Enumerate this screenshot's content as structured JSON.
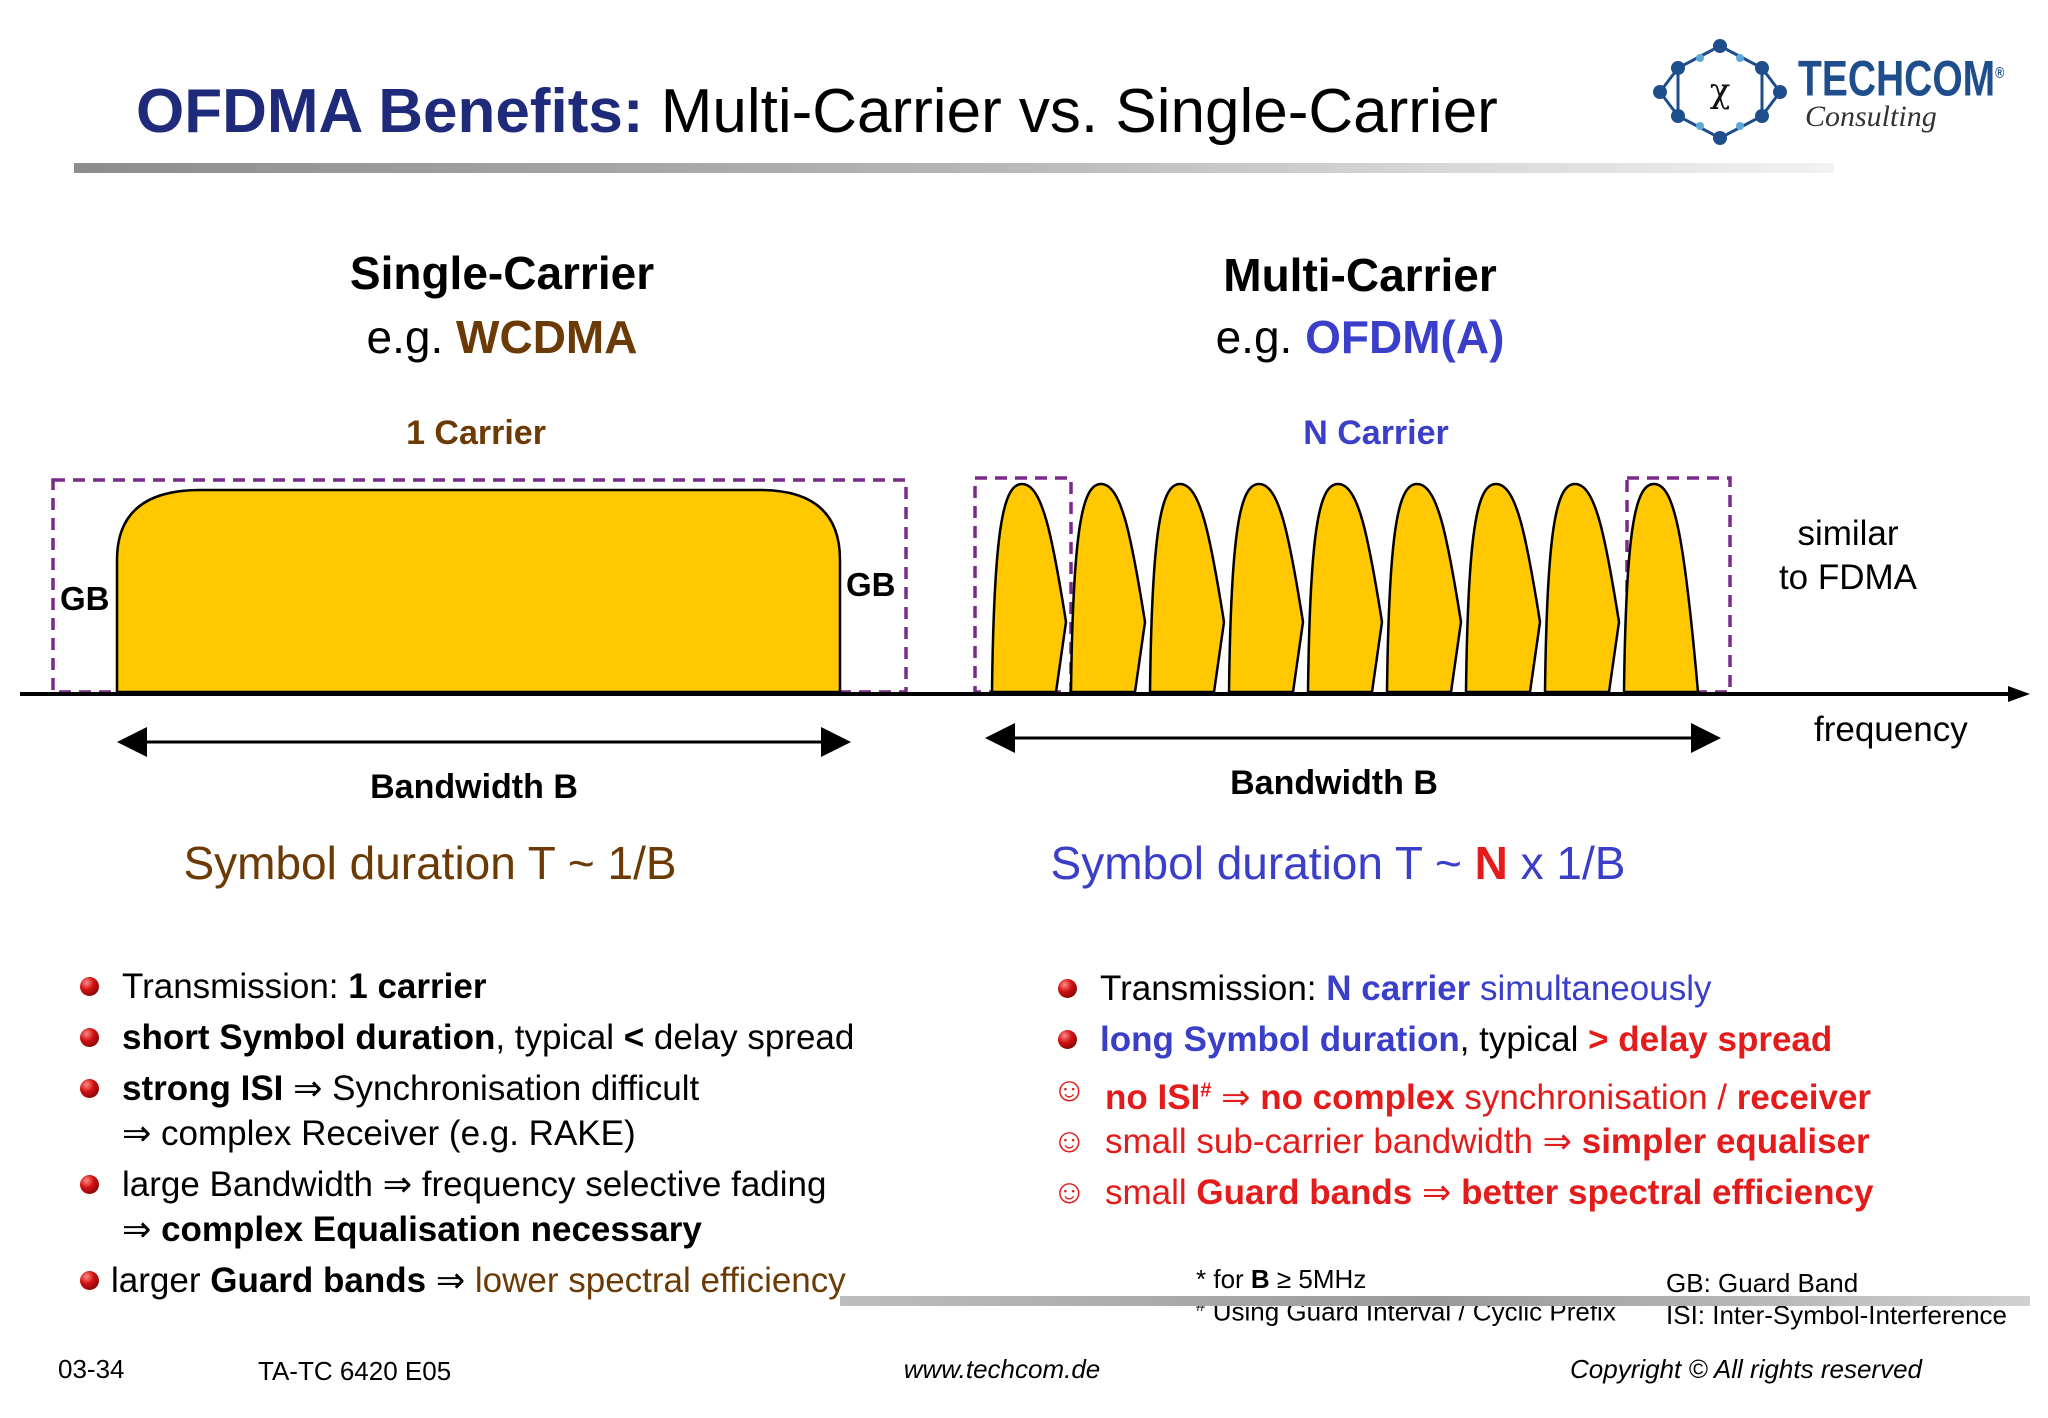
{
  "title": {
    "accent": "OFDMA Benefits:",
    "rest": " Multi-Carrier vs. Single-Carrier"
  },
  "logo": {
    "name": "TECHCOM",
    "tagline": "Consulting",
    "registered": "®"
  },
  "single": {
    "heading": "Single-Carrier",
    "eg_prefix": "e.g. ",
    "eg_name": "WCDMA",
    "carrier_label": "1 Carrier",
    "gb_left": "GB",
    "gb_right": "GB",
    "bandwidth": "Bandwidth B",
    "symbol_duration": "Symbol duration T ~ 1/B",
    "bullets": [
      {
        "a": "Transmission: ",
        "b": "1 carrier"
      },
      {
        "b": "short Symbol duration",
        "c": ", typical ",
        "d": "<",
        "e": " delay spread"
      },
      {
        "b": "strong ISI",
        "c": " ⇒ Synchronisation difficult"
      },
      {
        "c": "⇒ complex Receiver (e.g. RAKE)"
      },
      {
        "c": "large Bandwidth  ⇒  frequency selective fading"
      },
      {
        "c": "⇒ ",
        "b": "complex Equalisation necessary"
      },
      {
        "a": "larger ",
        "b": "Guard bands",
        "c": " ⇒ ",
        "d": "lower spectral efficiency"
      }
    ]
  },
  "multi": {
    "heading": "Multi-Carrier",
    "eg_prefix": "e.g. ",
    "eg_name": "OFDM(A)",
    "carrier_label": "N Carrier",
    "side_note_1": "similar",
    "side_note_2": "to FDMA",
    "axis_label": "frequency",
    "bandwidth": "Bandwidth B",
    "symbol_duration": {
      "a": "Symbol duration T ~ ",
      "n": "N",
      "b": " x 1/B"
    },
    "bullets": [
      {
        "a": "Transmission: ",
        "b": "N carrier",
        "c": " simultaneously"
      },
      {
        "b": "long Symbol duration",
        "c": ", typical ",
        "d": "> delay spread"
      },
      {
        "a": "no ISI",
        "sup": "#",
        "b": "  ⇒ ",
        "c": "no complex",
        "d": " synchronisation / ",
        "e": "receiver"
      },
      {
        "a": "small sub-carrier bandwidth ⇒ ",
        "b": "simpler equaliser"
      },
      {
        "a": "small ",
        "b": "Guard bands",
        "c": " ⇒ ",
        "d": "better spectral efficiency"
      }
    ],
    "smiley": "☺"
  },
  "footnotes": {
    "f1_prefix": "*  for ",
    "f1_b": "B",
    "f1_rest": " ≥ 5MHz",
    "f2_mark": "#",
    "f2_text": " Using Guard Interval / Cyclic Prefix",
    "gb_def": "GB: Guard Band",
    "isi_def": "ISI: Inter-Symbol-Interference"
  },
  "footer": {
    "page": "03-34",
    "code": "TA-TC 6420 E05",
    "url": "www.techcom.de",
    "copyright": "Copyright ©  All rights reserved"
  },
  "colors": {
    "carrier_fill": "#ffc800",
    "guard_box": "#7a2a8a",
    "brown": "#6b3a05",
    "blue": "#3a3ec9",
    "red": "#e31b1b"
  },
  "diagram": {
    "subcarrier_count": 9
  }
}
